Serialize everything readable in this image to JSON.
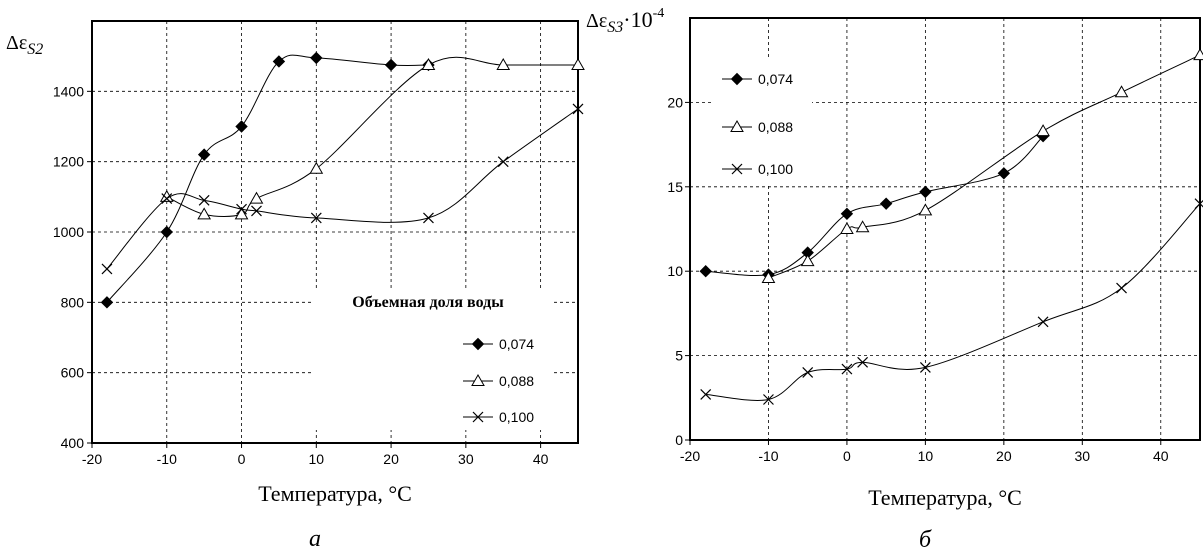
{
  "chart_data": [
    {
      "type": "line",
      "panel_label": "а",
      "ylabel": "Δε",
      "ylabel_sub": "S2",
      "ylabel_extra": "",
      "xlabel": "Температура, °С",
      "xlim": [
        -20,
        45
      ],
      "ylim": [
        400,
        1600
      ],
      "xticks": [
        -20,
        -10,
        0,
        10,
        20,
        30,
        40
      ],
      "yticks": [
        400,
        600,
        800,
        1000,
        1200,
        1400
      ],
      "grid": true,
      "legend_title": "Объемная доля воды",
      "legend_placement": "bottom-right",
      "series": [
        {
          "name": "0,074",
          "marker": "diamond",
          "x": [
            -18,
            -10,
            -5,
            0,
            5,
            10,
            20,
            25
          ],
          "y": [
            800,
            1000,
            1220,
            1300,
            1485,
            1495,
            1475,
            1475
          ]
        },
        {
          "name": "0,088",
          "marker": "triangle",
          "x": [
            -10,
            -5,
            0,
            2,
            10,
            25,
            35,
            45
          ],
          "y": [
            1100,
            1050,
            1050,
            1095,
            1180,
            1475,
            1475,
            1475
          ]
        },
        {
          "name": "0,100",
          "marker": "x",
          "x": [
            -18,
            -10,
            -5,
            0,
            2,
            10,
            25,
            35,
            45
          ],
          "y": [
            895,
            1095,
            1090,
            1065,
            1060,
            1040,
            1040,
            1200,
            1350
          ]
        }
      ]
    },
    {
      "type": "line",
      "panel_label": "б",
      "ylabel": "Δε",
      "ylabel_sub": "S3",
      "ylabel_extra": "·10",
      "ylabel_exp": "-4",
      "xlabel": "Температура, °С",
      "xlim": [
        -20,
        45
      ],
      "ylim": [
        0,
        25
      ],
      "xticks": [
        -20,
        -10,
        0,
        10,
        20,
        30,
        40
      ],
      "yticks": [
        0,
        5,
        10,
        15,
        20
      ],
      "grid": true,
      "legend_title": "",
      "legend_placement": "top-left",
      "series": [
        {
          "name": "0,074",
          "marker": "diamond",
          "x": [
            -18,
            -10,
            -5,
            0,
            5,
            10,
            20,
            25
          ],
          "y": [
            10,
            9.8,
            11.1,
            13.4,
            14.0,
            14.7,
            15.8,
            18.0
          ]
        },
        {
          "name": "0,088",
          "marker": "triangle",
          "x": [
            -10,
            -5,
            0,
            2,
            10,
            25,
            35,
            45
          ],
          "y": [
            9.6,
            10.6,
            12.5,
            12.6,
            13.6,
            18.3,
            20.6,
            22.8
          ]
        },
        {
          "name": "0,100",
          "marker": "x",
          "x": [
            -18,
            -10,
            -5,
            0,
            2,
            10,
            25,
            35,
            45
          ],
          "y": [
            2.7,
            2.4,
            4.0,
            4.2,
            4.6,
            4.3,
            7.0,
            9.0,
            14.0
          ]
        }
      ]
    }
  ]
}
